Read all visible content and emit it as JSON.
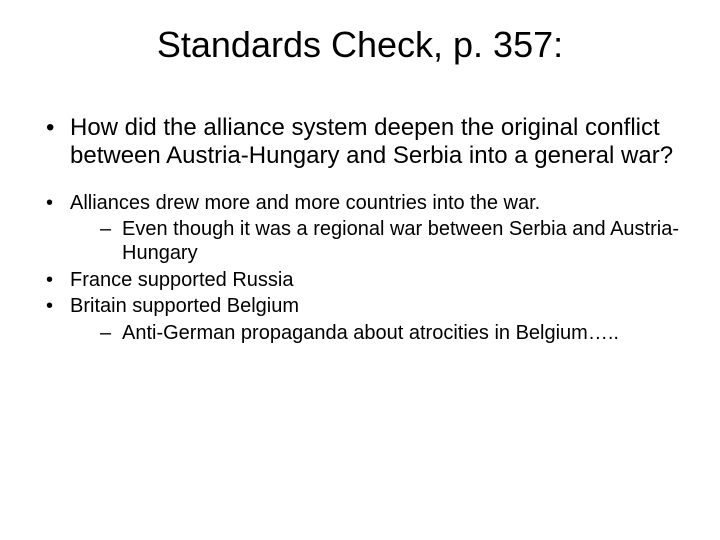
{
  "title": "Standards Check, p. 357:",
  "question": "How did the alliance system deepen the original conflict between Austria-Hungary and Serbia into a general war?",
  "points": [
    {
      "text": "Alliances drew more and more countries into the war.",
      "sub": [
        "Even though it was a regional war between Serbia and Austria-Hungary"
      ]
    },
    {
      "text": "France supported Russia",
      "sub": []
    },
    {
      "text": "Britain supported Belgium",
      "sub": [
        "Anti-German propaganda about atrocities in Belgium….."
      ]
    }
  ],
  "style": {
    "background_color": "#ffffff",
    "text_color": "#000000",
    "title_fontsize": 36,
    "question_fontsize": 24,
    "body_fontsize": 20,
    "font_family": "Arial"
  }
}
